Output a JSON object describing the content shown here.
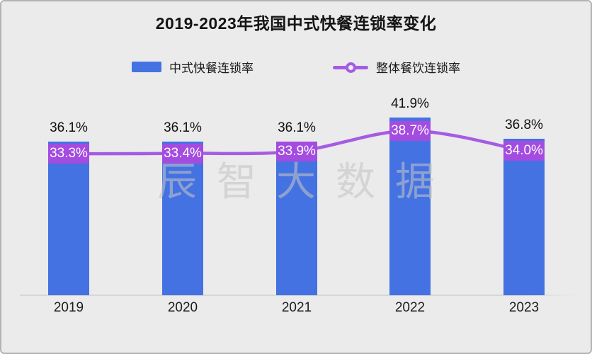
{
  "page": {
    "title": "2019-2023年我国中式快餐连锁率变化"
  },
  "legend": {
    "items": [
      {
        "label": "中式快餐连锁率",
        "marker": "bar-swatch",
        "color": "#4472e3"
      },
      {
        "label": "整体餐饮连锁率",
        "marker": "line-with-ring",
        "color": "#a55ce3"
      }
    ]
  },
  "watermark": "辰智大数据",
  "colors": {
    "bar": "#4472e3",
    "line": "#a55ce3",
    "line_label_box": "#a44be0",
    "background": "#ebebeb",
    "axis": "#d7d7d7"
  },
  "chart_data": {
    "type": "bar",
    "subtype": "bar-with-line-overlay",
    "title": "2019-2023年我国中式快餐连锁率变化",
    "categories": [
      "2019",
      "2020",
      "2021",
      "2022",
      "2023"
    ],
    "series": [
      {
        "name": "中式快餐连锁率",
        "type": "bar",
        "color": "#4472e3",
        "values": [
          36.1,
          36.1,
          36.1,
          41.9,
          36.8
        ],
        "labels": [
          "36.1%",
          "36.1%",
          "36.1%",
          "41.9%",
          "36.8%"
        ]
      },
      {
        "name": "整体餐饮连锁率",
        "type": "line",
        "color": "#a55ce3",
        "values": [
          33.3,
          33.4,
          33.9,
          38.7,
          34.0
        ],
        "labels": [
          "33.3%",
          "33.4%",
          "33.9%",
          "38.7%",
          "34.0%"
        ]
      }
    ],
    "xlabel": "",
    "ylabel": "",
    "ylim": [
      0,
      69
    ],
    "y_axis_visible": false,
    "grid": false,
    "legend_position": "top",
    "value_labels_visible": true
  }
}
